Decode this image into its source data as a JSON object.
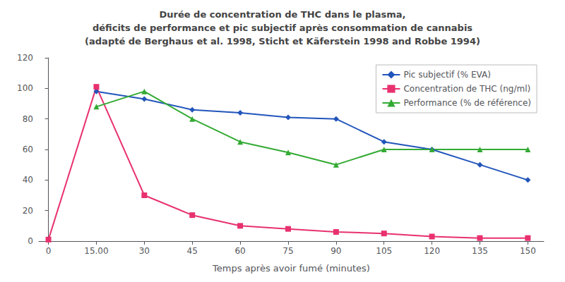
{
  "chart_data": {
    "type": "line",
    "title": "Durée de concentration de THC dans le plasma,\ndéficits de performance et pic subjectif après consommation de cannabis\n(adapté de Berghaus et al. 1998, Sticht et Käferstein 1998 and Robbe 1994)",
    "xlabel": "Temps après avoir fumé (minutes)",
    "xlim": [
      -3,
      155
    ],
    "xticks": [
      0,
      {
        "value": 15,
        "label": "15.00"
      },
      30,
      45,
      60,
      75,
      90,
      105,
      120,
      135,
      150
    ],
    "ylim": [
      0,
      120
    ],
    "yticks": [
      0,
      20,
      40,
      60,
      80,
      100,
      120
    ],
    "grid": false,
    "legend": "upper right",
    "series": [
      {
        "name": "Pic subjectif (% EVA)",
        "color": "#2255bb",
        "marker": "diamond",
        "x": [
          15,
          30,
          45,
          60,
          75,
          90,
          105,
          120,
          135,
          150
        ],
        "values": [
          98,
          93,
          86,
          84,
          81,
          80,
          65,
          60,
          50,
          40
        ]
      },
      {
        "name": "Concentration de THC (ng/ml)",
        "color": "#e8316e",
        "marker": "square",
        "x": [
          0,
          15,
          30,
          45,
          60,
          75,
          90,
          105,
          120,
          135,
          150
        ],
        "values": [
          1,
          101,
          30,
          17,
          10,
          8,
          6,
          5,
          3,
          2,
          2
        ]
      },
      {
        "name": "Performance (% de référence)",
        "color": "#33aa33",
        "marker": "triangle",
        "x": [
          15,
          30,
          45,
          60,
          75,
          90,
          105,
          120,
          135,
          150
        ],
        "values": [
          88,
          98,
          80,
          65,
          58,
          50,
          60,
          60,
          60,
          60
        ]
      }
    ]
  }
}
